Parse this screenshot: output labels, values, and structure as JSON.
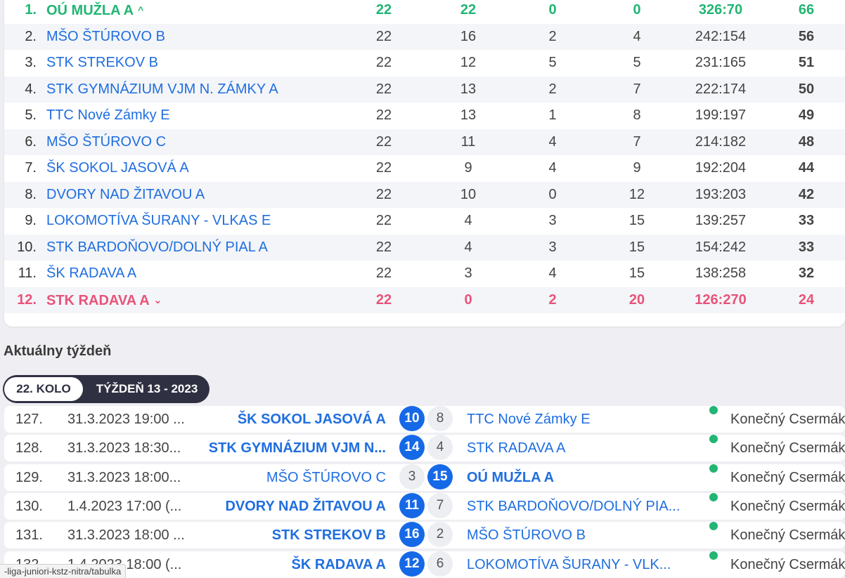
{
  "standings": [
    {
      "rank": "1.",
      "team": "OÚ MUŽLA A",
      "played": "22",
      "wins": "22",
      "draws": "0",
      "losses": "0",
      "score": "326:70",
      "points": "66",
      "trend": "^"
    },
    {
      "rank": "2.",
      "team": "MŠO ŠTÚROVO B",
      "played": "22",
      "wins": "16",
      "draws": "2",
      "losses": "4",
      "score": "242:154",
      "points": "56"
    },
    {
      "rank": "3.",
      "team": "STK STREKOV B",
      "played": "22",
      "wins": "12",
      "draws": "5",
      "losses": "5",
      "score": "231:165",
      "points": "51"
    },
    {
      "rank": "4.",
      "team": "STK GYMNÁZIUM VJM N. ZÁMKY A",
      "played": "22",
      "wins": "13",
      "draws": "2",
      "losses": "7",
      "score": "222:174",
      "points": "50"
    },
    {
      "rank": "5.",
      "team": "TTC Nové Zámky E",
      "played": "22",
      "wins": "13",
      "draws": "1",
      "losses": "8",
      "score": "199:197",
      "points": "49"
    },
    {
      "rank": "6.",
      "team": "MŠO ŠTÚROVO C",
      "played": "22",
      "wins": "11",
      "draws": "4",
      "losses": "7",
      "score": "214:182",
      "points": "48"
    },
    {
      "rank": "7.",
      "team": "ŠK SOKOL JASOVÁ A",
      "played": "22",
      "wins": "9",
      "draws": "4",
      "losses": "9",
      "score": "192:204",
      "points": "44"
    },
    {
      "rank": "8.",
      "team": "DVORY NAD ŽITAVOU A",
      "played": "22",
      "wins": "10",
      "draws": "0",
      "losses": "12",
      "score": "193:203",
      "points": "42"
    },
    {
      "rank": "9.",
      "team": "LOKOMOTÍVA ŠURANY - VLKAS E",
      "played": "22",
      "wins": "4",
      "draws": "3",
      "losses": "15",
      "score": "139:257",
      "points": "33"
    },
    {
      "rank": "10.",
      "team": "STK BARDOŇOVO/DOLNÝ PIAL A",
      "played": "22",
      "wins": "4",
      "draws": "3",
      "losses": "15",
      "score": "154:242",
      "points": "33"
    },
    {
      "rank": "11.",
      "team": "ŠK RADAVA A",
      "played": "22",
      "wins": "3",
      "draws": "4",
      "losses": "15",
      "score": "138:258",
      "points": "32"
    },
    {
      "rank": "12.",
      "team": "STK RADAVA A",
      "played": "22",
      "wins": "0",
      "draws": "2",
      "losses": "20",
      "score": "126:270",
      "points": "24",
      "trend": "⌄"
    }
  ],
  "week": {
    "title": "Aktuálny týždeň",
    "tab_round": "22. KOLO",
    "tab_week": "TÝŽDEŇ 13 - 2023"
  },
  "matches": [
    {
      "num": "127.",
      "date": "31.3.2023 19:00 ...",
      "home": "ŠK SOKOL JASOVÁ A",
      "home_score": "10",
      "away_score": "8",
      "away": "TTC Nové Zámky E",
      "referee": "Konečný Csermák",
      "winner": "home"
    },
    {
      "num": "128.",
      "date": "31.3.2023 18:30...",
      "home": "STK GYMNÁZIUM VJM N...",
      "home_score": "14",
      "away_score": "4",
      "away": "STK RADAVA A",
      "referee": "Konečný Csermák",
      "winner": "home"
    },
    {
      "num": "129.",
      "date": "31.3.2023 18:00...",
      "home": "MŠO ŠTÚROVO C",
      "home_score": "3",
      "away_score": "15",
      "away": "OÚ MUŽLA A",
      "referee": "Konečný Csermák",
      "winner": "away"
    },
    {
      "num": "130.",
      "date": "1.4.2023 17:00 (...",
      "home": "DVORY NAD ŽITAVOU A",
      "home_score": "11",
      "away_score": "7",
      "away": "STK BARDOŇOVO/DOLNÝ PIA...",
      "referee": "Konečný Csermák",
      "winner": "home"
    },
    {
      "num": "131.",
      "date": "31.3.2023 18:00 ...",
      "home": "STK STREKOV B",
      "home_score": "16",
      "away_score": "2",
      "away": "MŠO ŠTÚROVO B",
      "referee": "Konečný Csermák",
      "winner": "home"
    },
    {
      "num": "132.",
      "date": "1.4.2023 18:00 (...",
      "home": "ŠK RADAVA A",
      "home_score": "12",
      "away_score": "6",
      "away": "LOKOMOTÍVA ŠURANY - VLK...",
      "referee": "Konečný Csermák",
      "winner": "home"
    }
  ],
  "status_url": "-liga-juniori-kstz-nitra/tabulka",
  "colors": {
    "promoted": "#22b573",
    "relegated": "#e8537a",
    "link": "#1f6ee0",
    "win_ball": "#1669e6",
    "status_dot": "#22b573"
  }
}
